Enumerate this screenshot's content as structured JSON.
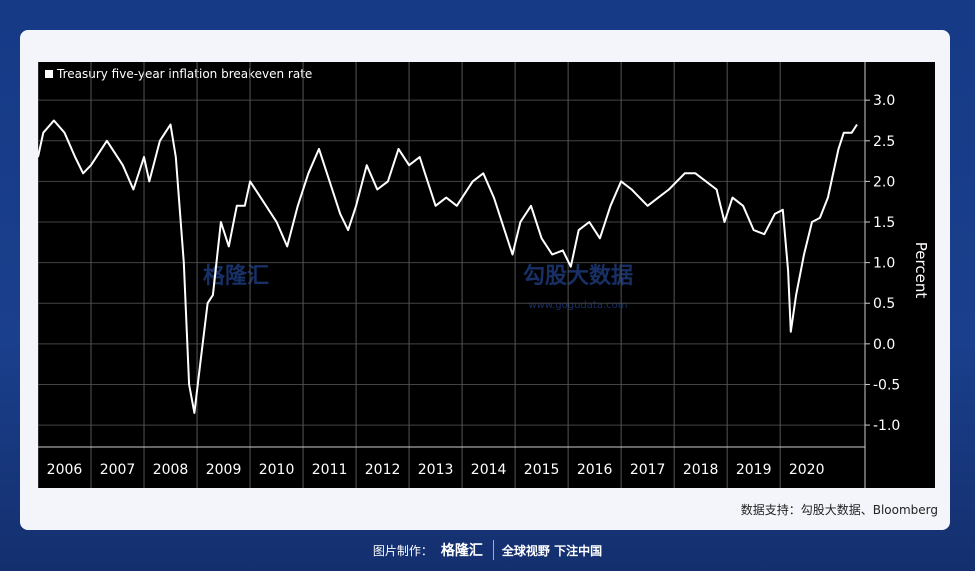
{
  "chart_data": {
    "type": "line",
    "legend_label": "Treasury five-year inflation breakeven rate",
    "y_label": "Percent",
    "x": [
      2006.0,
      2006.1,
      2006.3,
      2006.5,
      2006.7,
      2006.85,
      2007.0,
      2007.3,
      2007.6,
      2007.8,
      2008.0,
      2008.1,
      2008.3,
      2008.5,
      2008.6,
      2008.75,
      2008.85,
      2008.95,
      2009.05,
      2009.2,
      2009.3,
      2009.45,
      2009.6,
      2009.75,
      2009.9,
      2010.0,
      2010.2,
      2010.5,
      2010.7,
      2010.9,
      2011.1,
      2011.3,
      2011.5,
      2011.7,
      2011.85,
      2012.0,
      2012.2,
      2012.4,
      2012.6,
      2012.8,
      2013.0,
      2013.2,
      2013.35,
      2013.5,
      2013.7,
      2013.9,
      2014.2,
      2014.4,
      2014.6,
      2014.8,
      2014.95,
      2015.1,
      2015.3,
      2015.5,
      2015.7,
      2015.9,
      2016.05,
      2016.2,
      2016.4,
      2016.6,
      2016.8,
      2017.0,
      2017.2,
      2017.5,
      2017.7,
      2017.9,
      2018.2,
      2018.4,
      2018.6,
      2018.8,
      2018.95,
      2019.1,
      2019.3,
      2019.5,
      2019.7,
      2019.9,
      2020.05,
      2020.15,
      2020.2,
      2020.3,
      2020.45,
      2020.6,
      2020.75,
      2020.9,
      2021.1,
      2021.2,
      2021.35,
      2021.45
    ],
    "series": [
      {
        "name": "Treasury five-year inflation breakeven rate",
        "color": "#ffffff",
        "values": [
          2.3,
          2.6,
          2.75,
          2.6,
          2.3,
          2.1,
          2.2,
          2.5,
          2.2,
          1.9,
          2.3,
          2.0,
          2.5,
          2.7,
          2.3,
          1.0,
          -0.5,
          -0.85,
          -0.3,
          0.5,
          0.6,
          1.5,
          1.2,
          1.7,
          1.7,
          2.0,
          1.8,
          1.5,
          1.2,
          1.7,
          2.1,
          2.4,
          2.0,
          1.6,
          1.4,
          1.7,
          2.2,
          1.9,
          2.0,
          2.4,
          2.2,
          2.3,
          2.0,
          1.7,
          1.8,
          1.7,
          2.0,
          2.1,
          1.8,
          1.4,
          1.1,
          1.5,
          1.7,
          1.3,
          1.1,
          1.15,
          0.95,
          1.4,
          1.5,
          1.3,
          1.7,
          2.0,
          1.9,
          1.7,
          1.8,
          1.9,
          2.1,
          2.1,
          2.0,
          1.9,
          1.5,
          1.8,
          1.7,
          1.4,
          1.35,
          1.6,
          1.65,
          0.9,
          0.15,
          0.6,
          1.1,
          1.5,
          1.55,
          1.8,
          2.4,
          2.6,
          2.6,
          2.7
        ]
      }
    ],
    "xlim": [
      2006,
      2021.6
    ],
    "xticks": [
      2006,
      2007,
      2008,
      2009,
      2010,
      2011,
      2012,
      2013,
      2014,
      2015,
      2016,
      2017,
      2018,
      2019,
      2020
    ],
    "ylim": [
      -1.27,
      3.47
    ],
    "yticks": [
      {
        "value": 3,
        "label": "3.0"
      },
      2.5,
      {
        "value": 2,
        "label": "2.0"
      },
      1.5,
      {
        "value": 1,
        "label": "1.0"
      },
      0.5,
      {
        "value": 0,
        "label": "0.0"
      },
      -0.5,
      {
        "value": -1,
        "label": "-1.0"
      }
    ],
    "grid": true
  },
  "watermark": {
    "brand": "格隆汇",
    "partner": "勾股大数据",
    "url": "www.gogudata.com"
  },
  "source": "数据支持：勾股大数据、Bloomberg",
  "footer": {
    "label": "图片制作：",
    "logo": "格隆汇",
    "slogan": "全球视野 下注中国"
  }
}
